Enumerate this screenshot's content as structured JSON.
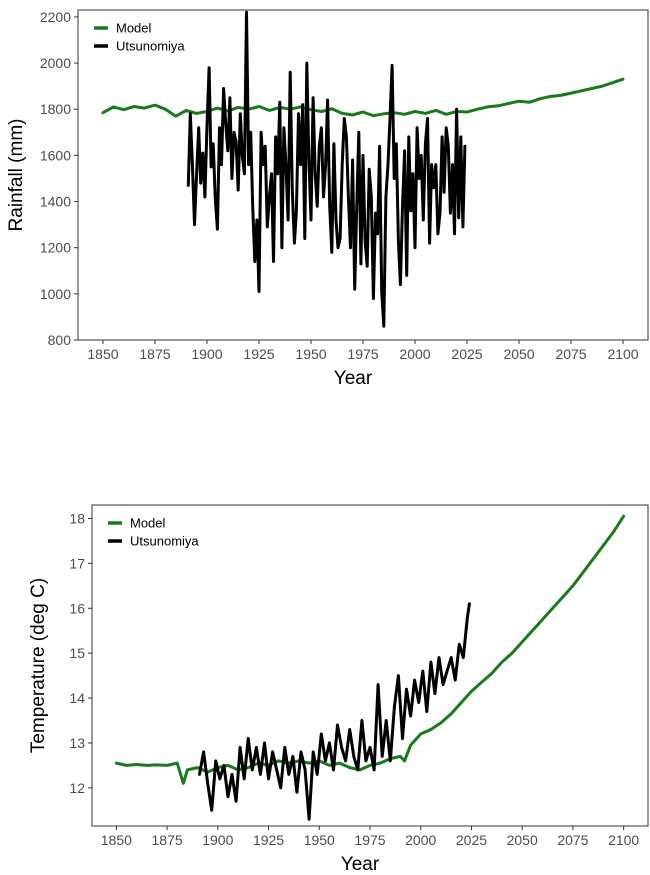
{
  "chart_data": [
    {
      "type": "line",
      "xlabel": "Year",
      "ylabel": "Rainfall (mm)",
      "xlim": [
        1838,
        2112
      ],
      "ylim": [
        800,
        2230
      ],
      "xticks": [
        1850,
        1875,
        1900,
        1925,
        1950,
        1975,
        2000,
        2025,
        2050,
        2075,
        2100
      ],
      "yticks": [
        800,
        1000,
        1200,
        1400,
        1600,
        1800,
        2000,
        2200
      ],
      "grid": false,
      "legend_position": "top-left",
      "series": [
        {
          "name": "Model",
          "color": "#1a7a1a",
          "x": [
            1850,
            1855,
            1860,
            1865,
            1870,
            1875,
            1880,
            1885,
            1890,
            1895,
            1900,
            1905,
            1910,
            1915,
            1920,
            1925,
            1930,
            1935,
            1940,
            1945,
            1950,
            1955,
            1960,
            1965,
            1970,
            1975,
            1980,
            1985,
            1990,
            1995,
            2000,
            2005,
            2010,
            2015,
            2020,
            2025,
            2030,
            2035,
            2040,
            2045,
            2050,
            2055,
            2060,
            2065,
            2070,
            2075,
            2080,
            2085,
            2090,
            2095,
            2100
          ],
          "y": [
            1785,
            1810,
            1798,
            1812,
            1805,
            1818,
            1800,
            1770,
            1795,
            1782,
            1790,
            1805,
            1792,
            1808,
            1800,
            1812,
            1795,
            1808,
            1800,
            1810,
            1798,
            1790,
            1802,
            1782,
            1775,
            1788,
            1772,
            1780,
            1785,
            1778,
            1790,
            1782,
            1795,
            1778,
            1790,
            1788,
            1800,
            1810,
            1815,
            1825,
            1835,
            1830,
            1845,
            1855,
            1860,
            1870,
            1880,
            1890,
            1900,
            1915,
            1930
          ]
        },
        {
          "name": "Utsunomiya",
          "color": "#000000",
          "x": [
            1891,
            1892,
            1893,
            1894,
            1895,
            1896,
            1897,
            1898,
            1899,
            1900,
            1901,
            1902,
            1903,
            1904,
            1905,
            1906,
            1907,
            1908,
            1909,
            1910,
            1911,
            1912,
            1913,
            1914,
            1915,
            1916,
            1917,
            1918,
            1919,
            1920,
            1921,
            1922,
            1923,
            1924,
            1925,
            1926,
            1927,
            1928,
            1929,
            1930,
            1931,
            1932,
            1933,
            1934,
            1935,
            1936,
            1937,
            1938,
            1939,
            1940,
            1941,
            1942,
            1943,
            1944,
            1945,
            1946,
            1947,
            1948,
            1949,
            1950,
            1951,
            1952,
            1953,
            1954,
            1955,
            1956,
            1957,
            1958,
            1959,
            1960,
            1961,
            1962,
            1963,
            1964,
            1965,
            1966,
            1967,
            1968,
            1969,
            1970,
            1971,
            1972,
            1973,
            1974,
            1975,
            1976,
            1977,
            1978,
            1979,
            1980,
            1981,
            1982,
            1983,
            1984,
            1985,
            1986,
            1987,
            1988,
            1989,
            1990,
            1991,
            1992,
            1993,
            1994,
            1995,
            1996,
            1997,
            1998,
            1999,
            2000,
            2001,
            2002,
            2003,
            2004,
            2005,
            2006,
            2007,
            2008,
            2009,
            2010,
            2011,
            2012,
            2013,
            2014,
            2015,
            2016,
            2017,
            2018,
            2019,
            2020,
            2021,
            2022,
            2023,
            2024
          ],
          "y": [
            1470,
            1780,
            1560,
            1300,
            1520,
            1720,
            1480,
            1610,
            1420,
            1730,
            1980,
            1550,
            1650,
            1410,
            1280,
            1720,
            1560,
            1890,
            1740,
            1620,
            1850,
            1500,
            1700,
            1660,
            1450,
            1780,
            1600,
            1520,
            2220,
            1560,
            1700,
            1380,
            1140,
            1320,
            1010,
            1700,
            1560,
            1640,
            1290,
            1420,
            1520,
            1140,
            1680,
            1520,
            1830,
            1200,
            1720,
            1550,
            1320,
            1960,
            1450,
            1220,
            1360,
            1780,
            1560,
            1820,
            1240,
            2000,
            1580,
            1320,
            1850,
            1520,
            1380,
            1640,
            1720,
            1420,
            1560,
            1840,
            1380,
            1180,
            1650,
            1320,
            1200,
            1240,
            1560,
            1760,
            1680,
            1420,
            1200,
            1580,
            1020,
            1390,
            1700,
            1130,
            1600,
            1230,
            1120,
            1540,
            1420,
            980,
            1350,
            1260,
            1640,
            1010,
            860,
            1420,
            1560,
            1760,
            1990,
            1500,
            1650,
            1230,
            1040,
            1380,
            1620,
            1080,
            1680,
            1360,
            1520,
            1200,
            1720,
            1500,
            1600,
            1320,
            1650,
            1760,
            1220,
            1560,
            1460,
            1560,
            1260,
            1350,
            1680,
            1440,
            1720,
            1640,
            1350,
            1560,
            1260,
            1800,
            1330,
            1680,
            1290,
            1640
          ]
        }
      ]
    },
    {
      "type": "line",
      "xlabel": "Year",
      "ylabel": "Temperature (deg C)",
      "xlim": [
        1838,
        2112
      ],
      "ylim": [
        11.15,
        18.3
      ],
      "xticks": [
        1850,
        1875,
        1900,
        1925,
        1950,
        1975,
        2000,
        2025,
        2050,
        2075,
        2100
      ],
      "yticks": [
        12,
        13,
        14,
        15,
        16,
        17,
        18
      ],
      "grid": false,
      "legend_position": "top-left",
      "series": [
        {
          "name": "Model",
          "color": "#1a7a1a",
          "x": [
            1850,
            1855,
            1860,
            1865,
            1870,
            1875,
            1880,
            1883,
            1885,
            1890,
            1895,
            1900,
            1905,
            1910,
            1915,
            1920,
            1925,
            1930,
            1935,
            1940,
            1945,
            1950,
            1955,
            1960,
            1965,
            1970,
            1975,
            1980,
            1985,
            1990,
            1992,
            1995,
            2000,
            2005,
            2010,
            2015,
            2020,
            2025,
            2030,
            2035,
            2040,
            2045,
            2050,
            2055,
            2060,
            2065,
            2070,
            2075,
            2080,
            2085,
            2090,
            2095,
            2100
          ],
          "y": [
            12.55,
            12.5,
            12.52,
            12.5,
            12.51,
            12.5,
            12.55,
            12.1,
            12.4,
            12.45,
            12.35,
            12.45,
            12.5,
            12.4,
            12.45,
            12.55,
            12.5,
            12.6,
            12.55,
            12.6,
            12.55,
            12.6,
            12.5,
            12.55,
            12.45,
            12.4,
            12.5,
            12.55,
            12.65,
            12.7,
            12.6,
            12.95,
            13.2,
            13.3,
            13.45,
            13.65,
            13.9,
            14.15,
            14.35,
            14.55,
            14.8,
            15.0,
            15.25,
            15.5,
            15.75,
            16.0,
            16.25,
            16.5,
            16.8,
            17.1,
            17.4,
            17.7,
            18.05
          ]
        },
        {
          "name": "Utsunomiya",
          "color": "#000000",
          "x": [
            1891,
            1893,
            1895,
            1897,
            1899,
            1901,
            1903,
            1905,
            1907,
            1909,
            1911,
            1913,
            1915,
            1917,
            1919,
            1921,
            1923,
            1925,
            1927,
            1929,
            1931,
            1933,
            1935,
            1937,
            1939,
            1941,
            1943,
            1945,
            1947,
            1949,
            1951,
            1953,
            1955,
            1957,
            1959,
            1961,
            1963,
            1965,
            1967,
            1969,
            1971,
            1973,
            1975,
            1977,
            1979,
            1981,
            1983,
            1985,
            1987,
            1989,
            1991,
            1993,
            1995,
            1997,
            1999,
            2001,
            2003,
            2005,
            2007,
            2009,
            2011,
            2013,
            2015,
            2017,
            2019,
            2021,
            2023,
            2024
          ],
          "y": [
            12.3,
            12.8,
            12.1,
            11.5,
            12.6,
            12.2,
            12.5,
            11.8,
            12.3,
            11.7,
            12.9,
            12.2,
            13.1,
            12.4,
            12.9,
            12.3,
            13.0,
            12.2,
            12.8,
            12.4,
            12.0,
            12.9,
            12.3,
            12.7,
            11.9,
            12.8,
            12.4,
            11.3,
            12.8,
            12.3,
            13.2,
            12.6,
            13.0,
            12.4,
            13.4,
            12.9,
            12.6,
            13.3,
            12.7,
            12.4,
            13.5,
            12.6,
            12.9,
            12.4,
            14.3,
            12.7,
            13.5,
            12.6,
            13.8,
            14.5,
            13.1,
            14.2,
            13.6,
            14.4,
            13.9,
            14.6,
            13.7,
            14.8,
            14.1,
            14.9,
            14.3,
            14.6,
            14.9,
            14.4,
            15.2,
            14.9,
            15.8,
            16.1
          ]
        }
      ]
    }
  ]
}
